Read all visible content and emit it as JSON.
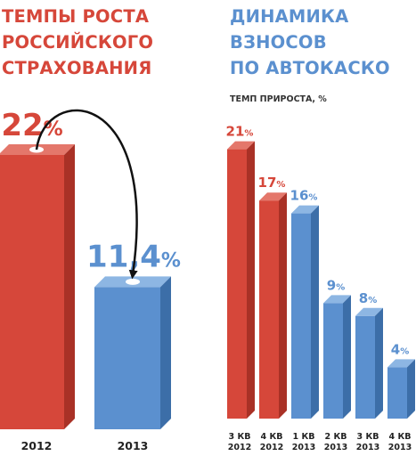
{
  "left_title_lines": [
    "ТЕМПЫ РОСТА",
    "РОССИЙСКОГО",
    "СТРАХОВАНИЯ"
  ],
  "right_title_lines": [
    "ДИНАМИКА",
    "ВЗНОСОВ",
    "ПО АВТОКАСКО"
  ],
  "subtitle": "ТЕМП ПРИРОСТА, %",
  "colors": {
    "red": "#d6473a",
    "blue": "#5b90cf"
  },
  "chart_data": [
    {
      "type": "bar",
      "title": "ТЕМПЫ РОСТА РОССИЙСКОГО СТРАХОВАНИЯ",
      "categories": [
        "2012",
        "2013"
      ],
      "values": [
        22,
        11.4
      ],
      "value_labels": [
        "22%",
        "11,4%"
      ],
      "bar_colors": [
        "red",
        "blue"
      ],
      "annotation": "arrow from 2012 bar to 2013 bar"
    },
    {
      "type": "bar",
      "title": "ДИНАМИКА ВЗНОСОВ ПО АВТОКАСКО",
      "ylabel": "ТЕМП ПРИРОСТА, %",
      "categories": [
        [
          "3 КВ",
          "2012"
        ],
        [
          "4 КВ",
          "2012"
        ],
        [
          "1 КВ",
          "2013"
        ],
        [
          "2 КВ",
          "2013"
        ],
        [
          "3 КВ",
          "2013"
        ],
        [
          "4 КВ",
          "2013"
        ]
      ],
      "values": [
        21,
        17,
        16,
        9,
        8,
        4
      ],
      "value_labels": [
        "21%",
        "17%",
        "16%",
        "9%",
        "8%",
        "4%"
      ],
      "bar_colors": [
        "red",
        "red",
        "blue",
        "blue",
        "blue",
        "blue"
      ]
    }
  ]
}
